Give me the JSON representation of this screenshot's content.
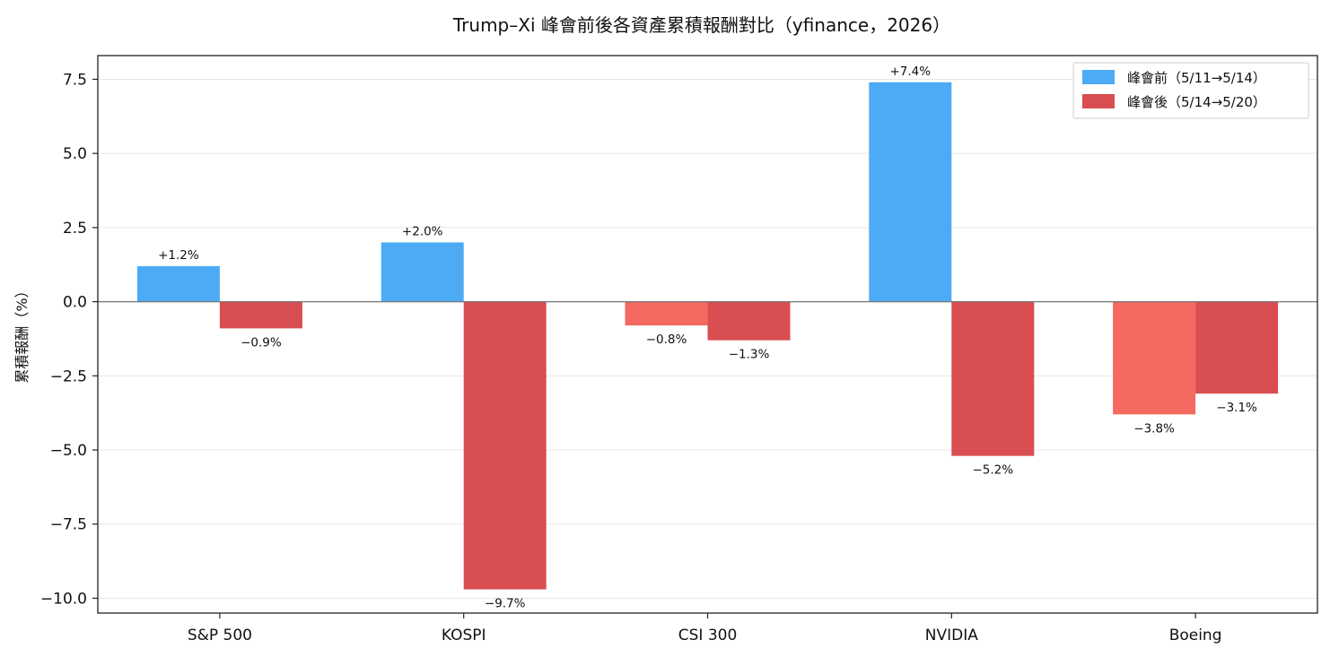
{
  "chart_data": {
    "type": "bar",
    "title": "Trump–Xi 峰會前後各資產累積報酬對比（yfinance，2026）",
    "xlabel": "",
    "ylabel": "累積報酬（%）",
    "categories": [
      "S&P 500",
      "KOSPI",
      "CSI 300",
      "NVIDIA",
      "Boeing"
    ],
    "series": [
      {
        "name": "峰會前（5/11→5/14）",
        "values": [
          1.2,
          2.0,
          -0.8,
          7.4,
          -3.8
        ],
        "labels": [
          "+1.2%",
          "+2.0%",
          "−0.8%",
          "+7.4%",
          "−3.8%"
        ],
        "color_pos": "#4dabf5",
        "color_neg": "#f46a60"
      },
      {
        "name": "峰會後（5/14→5/20）",
        "values": [
          -0.9,
          -9.7,
          -1.3,
          -5.2,
          -3.1
        ],
        "labels": [
          "−0.9%",
          "−9.7%",
          "−1.3%",
          "−5.2%",
          "−3.1%"
        ],
        "color_pos": "#d94e50",
        "color_neg": "#d94e50"
      }
    ],
    "ylim": [
      -10.5,
      8.3
    ],
    "yticks": [
      -10.0,
      -7.5,
      -5.0,
      -2.5,
      0.0,
      2.5,
      5.0,
      7.5
    ],
    "ytick_labels": [
      "−10.0",
      "−7.5",
      "−5.0",
      "−2.5",
      "0.0",
      "2.5",
      "5.0",
      "7.5"
    ],
    "grid": "horizontal",
    "legend_position": "top-right",
    "colors": {
      "before": "#4dabf5",
      "before_negative": "#f46a60",
      "after": "#d94e50",
      "grid": "#e6e6e6",
      "zero_line": "#777777"
    }
  }
}
